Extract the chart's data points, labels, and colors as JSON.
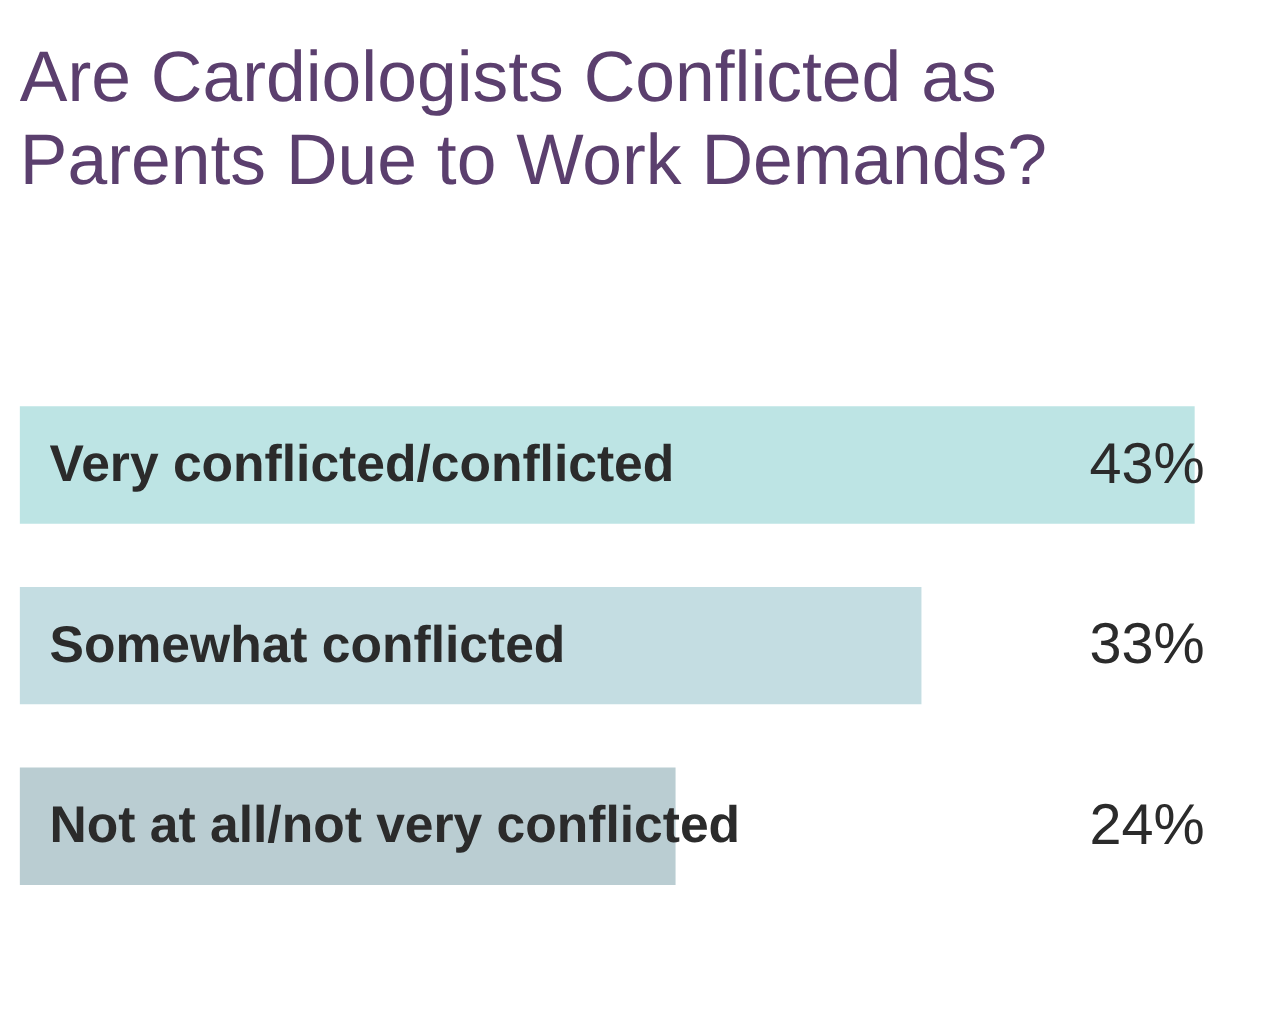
{
  "chart_data": {
    "type": "bar",
    "orientation": "horizontal",
    "title": "Are Cardiologists Conflicted as Parents Due to Work Demands?",
    "categories": [
      "Very conflicted/conflicted",
      "Somewhat conflicted",
      "Not at all/not very conflicted"
    ],
    "values": [
      43,
      33,
      24
    ],
    "value_labels": [
      "43%",
      "33%",
      "24%"
    ],
    "colors": [
      "#bde4e4",
      "#c4dde2",
      "#bacdd2"
    ]
  }
}
